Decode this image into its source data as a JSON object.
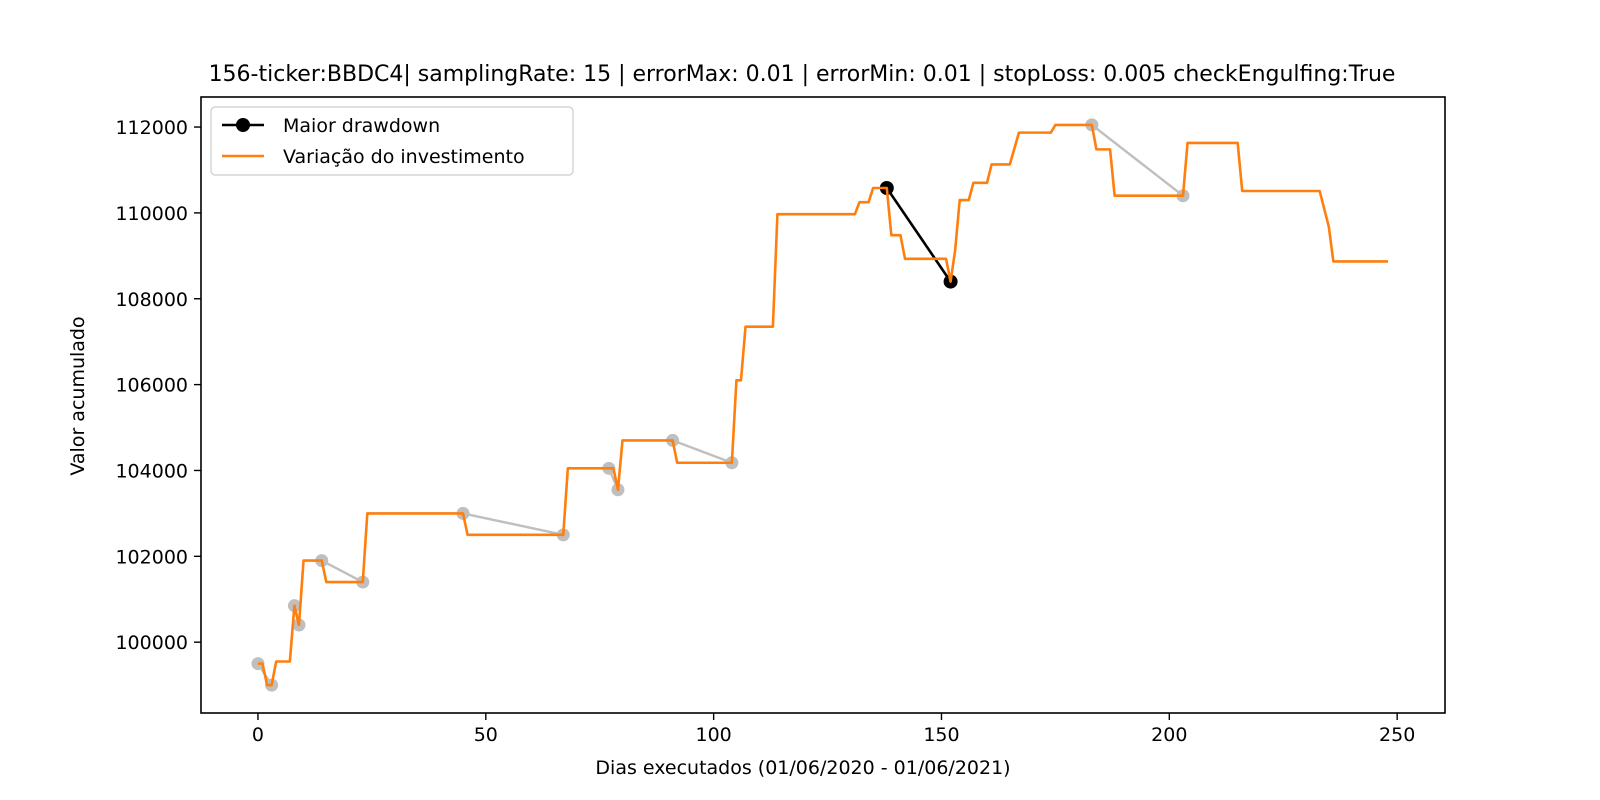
{
  "chart_data": {
    "type": "line",
    "title": "156-ticker:BBDC4| samplingRate: 15 | errorMax: 0.01 | errorMin: 0.01 | stopLoss: 0.005 checkEngulfing:True",
    "xlabel": "Dias executados (01/06/2020 - 01/06/2021)",
    "ylabel": "Valor acumulado",
    "xlim": [
      -12.5,
      260.5
    ],
    "ylim": [
      98350,
      112700
    ],
    "xticks": [
      0,
      50,
      100,
      150,
      200,
      250
    ],
    "yticks": [
      100000,
      102000,
      104000,
      106000,
      108000,
      110000,
      112000
    ],
    "xtick_labels": [
      "0",
      "50",
      "100",
      "150",
      "200",
      "250"
    ],
    "ytick_labels": [
      "100000",
      "102000",
      "104000",
      "106000",
      "108000",
      "110000",
      "112000"
    ],
    "grid": false,
    "legend_position": "top-left",
    "legend": {
      "drawdown": "Maior drawdown",
      "investment": "Variação do investimento"
    },
    "colors": {
      "investment": "#ff7f0e",
      "drawdown": "#000000",
      "minor_drawdowns": "#bfbfbf"
    },
    "series": [
      {
        "name": "Variação do investimento",
        "x": [
          0,
          1,
          2,
          3,
          4,
          5,
          7,
          8,
          9,
          10,
          13,
          14,
          15,
          22,
          23,
          24,
          44,
          45,
          46,
          66,
          67,
          68,
          77,
          78,
          79,
          80,
          90,
          91,
          92,
          103,
          104,
          105,
          106,
          107,
          113,
          114,
          131,
          132,
          134,
          135,
          137,
          138,
          139,
          141,
          142,
          143,
          150,
          151,
          152,
          153,
          154,
          156,
          157,
          160,
          161,
          164,
          165,
          167,
          168,
          174,
          175,
          182,
          183,
          184,
          187,
          188,
          202,
          203,
          204,
          215,
          216,
          232,
          233,
          235,
          236,
          248
        ],
        "y": [
          99500,
          99500,
          99000,
          99000,
          99550,
          99550,
          99550,
          100850,
          100400,
          101900,
          101900,
          101900,
          101400,
          101400,
          101400,
          103000,
          103000,
          103000,
          102500,
          102500,
          102500,
          104050,
          104050,
          104050,
          103550,
          104700,
          104700,
          104700,
          104180,
          104180,
          104180,
          106100,
          106100,
          107350,
          107350,
          109970,
          109970,
          110250,
          110250,
          110580,
          110580,
          110580,
          109480,
          109480,
          108930,
          108930,
          108930,
          108930,
          108400,
          109130,
          110300,
          110300,
          110700,
          110700,
          111130,
          111130,
          111130,
          111870,
          111870,
          111870,
          112050,
          112050,
          112050,
          111480,
          111480,
          110400,
          110400,
          110400,
          111630,
          111630,
          110510,
          110510,
          110510,
          109680,
          108870,
          108870
        ]
      },
      {
        "name": "Maior drawdown",
        "x": [
          138,
          152
        ],
        "y": [
          110580,
          108400
        ]
      }
    ],
    "minor_drawdowns": [
      {
        "x": [
          0,
          3
        ],
        "y": [
          99500,
          99000
        ]
      },
      {
        "x": [
          8,
          9
        ],
        "y": [
          100850,
          100400
        ]
      },
      {
        "x": [
          14,
          23
        ],
        "y": [
          101900,
          101400
        ]
      },
      {
        "x": [
          45,
          67
        ],
        "y": [
          103000,
          102500
        ]
      },
      {
        "x": [
          77,
          79
        ],
        "y": [
          104050,
          103550
        ]
      },
      {
        "x": [
          91,
          104
        ],
        "y": [
          104700,
          104180
        ]
      },
      {
        "x": [
          183,
          203
        ],
        "y": [
          112050,
          110400
        ]
      }
    ]
  }
}
